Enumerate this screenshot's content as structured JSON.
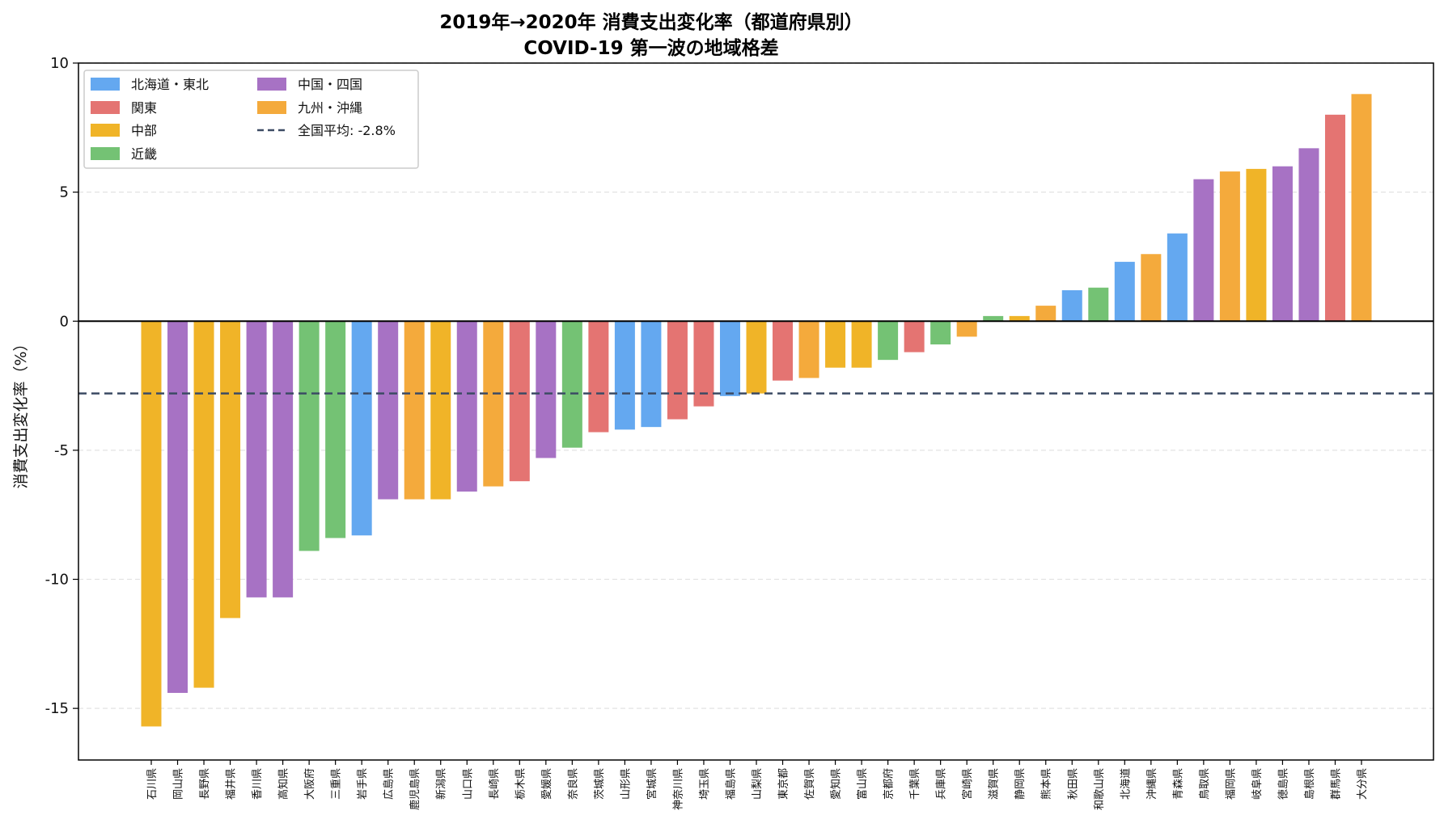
{
  "chart_data": {
    "type": "bar",
    "title": "2019年→2020年 消費支出変化率（都道府県別）",
    "subtitle": "COVID-19 第一波の地域格差",
    "xlabel": "",
    "ylabel": "消費支出変化率（%）",
    "ylim": [
      -17,
      10
    ],
    "yticks": [
      10,
      5,
      0,
      -5,
      -10,
      -15
    ],
    "ytick_labels": [
      "10",
      "5",
      "0",
      "-5",
      "-10",
      "-15"
    ],
    "grid": "horizontal dashed",
    "legend_position": "top-left",
    "regions": [
      {
        "name": "北海道・東北",
        "color": "#64a8f0"
      },
      {
        "name": "関東",
        "color": "#e47472"
      },
      {
        "name": "中部",
        "color": "#f0b428"
      },
      {
        "name": "近畿",
        "color": "#74c274"
      },
      {
        "name": "中国・四国",
        "color": "#a772c4"
      },
      {
        "name": "九州・沖縄",
        "color": "#f4aa3c"
      }
    ],
    "average": {
      "label": "全国平均: -2.8%",
      "value": -2.8,
      "color": "#3c4b64"
    },
    "categories": [
      "石川県",
      "岡山県",
      "長野県",
      "福井県",
      "香川県",
      "高知県",
      "大阪府",
      "三重県",
      "岩手県",
      "広島県",
      "鹿児島県",
      "新潟県",
      "山口県",
      "長崎県",
      "栃木県",
      "愛媛県",
      "奈良県",
      "茨城県",
      "山形県",
      "宮城県",
      "神奈川県",
      "埼玉県",
      "福島県",
      "山梨県",
      "東京都",
      "佐賀県",
      "愛知県",
      "富山県",
      "京都府",
      "千葉県",
      "兵庫県",
      "宮崎県",
      "滋賀県",
      "静岡県",
      "熊本県",
      "秋田県",
      "和歌山県",
      "北海道",
      "沖縄県",
      "青森県",
      "鳥取県",
      "福岡県",
      "岐阜県",
      "徳島県",
      "島根県",
      "群馬県",
      "大分県"
    ],
    "values": [
      -15.7,
      -14.4,
      -14.2,
      -11.5,
      -10.7,
      -10.7,
      -8.9,
      -8.4,
      -8.3,
      -6.9,
      -6.9,
      -6.9,
      -6.6,
      -6.4,
      -6.2,
      -5.3,
      -4.9,
      -4.3,
      -4.2,
      -4.1,
      -3.8,
      -3.3,
      -2.9,
      -2.8,
      -2.3,
      -2.2,
      -1.8,
      -1.8,
      -1.5,
      -1.2,
      -0.9,
      -0.6,
      0.2,
      0.2,
      0.6,
      1.2,
      1.3,
      2.3,
      2.6,
      3.4,
      5.5,
      5.8,
      5.9,
      6.0,
      6.7,
      8.0,
      8.8
    ],
    "regions_per_bar": [
      2,
      4,
      2,
      2,
      4,
      4,
      3,
      3,
      0,
      4,
      5,
      2,
      4,
      5,
      1,
      4,
      3,
      1,
      0,
      0,
      1,
      1,
      0,
      2,
      1,
      5,
      2,
      2,
      3,
      1,
      3,
      5,
      3,
      2,
      5,
      0,
      3,
      0,
      5,
      0,
      4,
      5,
      2,
      4,
      4,
      1,
      5
    ]
  }
}
